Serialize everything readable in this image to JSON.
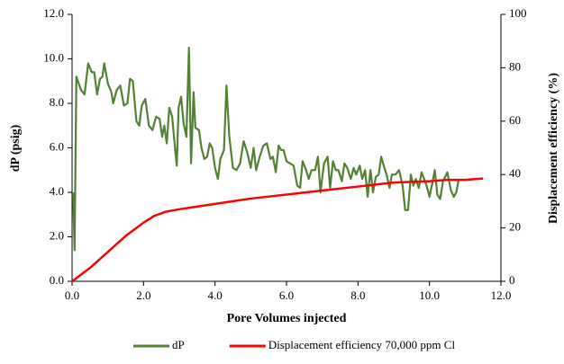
{
  "chart_data": {
    "type": "line",
    "x_label": "Pore Volumes injected",
    "y_label": "dP (psig)",
    "y2_label": "Displacement efficiency (%)",
    "xlim": [
      0,
      12
    ],
    "ylim": [
      0,
      12
    ],
    "y2lim": [
      0,
      100
    ],
    "xticks": [
      {
        "value": 0,
        "label": "0.0"
      },
      {
        "value": 2,
        "label": "2.0"
      },
      {
        "value": 4,
        "label": "4.0"
      },
      {
        "value": 6,
        "label": "6.0"
      },
      {
        "value": 8,
        "label": "8.0"
      },
      {
        "value": 10,
        "label": "10.0"
      },
      {
        "value": 12,
        "label": "12.0"
      }
    ],
    "yticks": [
      {
        "value": 0,
        "label": "0.0"
      },
      {
        "value": 2,
        "label": "2.0"
      },
      {
        "value": 4,
        "label": "4.0"
      },
      {
        "value": 6,
        "label": "6.0"
      },
      {
        "value": 8,
        "label": "8.0"
      },
      {
        "value": 10,
        "label": "10.0"
      },
      {
        "value": 12,
        "label": "12.0"
      }
    ],
    "y2ticks": [
      0,
      20,
      40,
      60,
      80,
      100
    ],
    "legend": "bottom",
    "series": [
      {
        "name": "dP",
        "color": "#538135",
        "x": [
          0.03,
          0.07,
          0.12,
          0.25,
          0.35,
          0.45,
          0.55,
          0.62,
          0.7,
          0.78,
          0.85,
          0.9,
          1.0,
          1.1,
          1.15,
          1.25,
          1.35,
          1.45,
          1.55,
          1.62,
          1.7,
          1.8,
          1.88,
          1.95,
          2.05,
          2.15,
          2.25,
          2.35,
          2.45,
          2.52,
          2.58,
          2.65,
          2.72,
          2.8,
          2.88,
          2.93,
          2.98,
          3.05,
          3.12,
          3.2,
          3.27,
          3.33,
          3.4,
          3.45,
          3.55,
          3.62,
          3.7,
          3.78,
          3.85,
          3.92,
          4.0,
          4.08,
          4.15,
          4.25,
          4.32,
          4.4,
          4.5,
          4.6,
          4.7,
          4.8,
          4.9,
          5.0,
          5.08,
          5.15,
          5.25,
          5.35,
          5.45,
          5.55,
          5.62,
          5.7,
          5.78,
          5.85,
          5.92,
          6.0,
          6.1,
          6.2,
          6.3,
          6.38,
          6.45,
          6.55,
          6.62,
          6.7,
          6.8,
          6.88,
          6.95,
          7.05,
          7.15,
          7.22,
          7.3,
          7.38,
          7.45,
          7.55,
          7.62,
          7.7,
          7.8,
          7.88,
          7.95,
          8.05,
          8.12,
          8.2,
          8.27,
          8.35,
          8.42,
          8.5,
          8.58,
          8.65,
          8.72,
          8.8,
          8.88,
          8.95,
          9.05,
          9.15,
          9.25,
          9.32,
          9.4,
          9.48,
          9.55,
          9.62,
          9.7,
          9.78,
          9.85,
          9.92,
          10.0,
          10.08,
          10.15,
          10.22,
          10.3,
          10.38,
          10.5,
          10.6,
          10.68,
          10.75,
          10.82
        ],
        "values": [
          4.0,
          1.4,
          9.2,
          8.6,
          8.4,
          9.8,
          9.4,
          9.4,
          8.4,
          9.1,
          9.2,
          9.8,
          8.9,
          8.5,
          8.0,
          8.6,
          8.8,
          7.9,
          8.0,
          9.1,
          9.0,
          7.2,
          7.0,
          7.9,
          8.2,
          7.0,
          6.8,
          7.4,
          7.3,
          6.5,
          7.0,
          6.2,
          7.8,
          7.4,
          6.0,
          5.2,
          7.8,
          8.3,
          7.1,
          6.5,
          10.5,
          5.3,
          8.5,
          6.9,
          6.8,
          6.0,
          5.5,
          5.6,
          6.2,
          6.0,
          5.1,
          4.6,
          5.5,
          5.9,
          8.8,
          6.5,
          5.1,
          5.0,
          5.3,
          6.3,
          5.8,
          5.1,
          6.0,
          5.0,
          5.6,
          6.1,
          6.2,
          5.5,
          5.6,
          4.9,
          6.1,
          5.9,
          5.9,
          5.4,
          5.3,
          5.2,
          4.3,
          4.2,
          5.4,
          5.0,
          4.6,
          5.0,
          5.0,
          5.6,
          4.0,
          5.3,
          5.6,
          4.2,
          5.4,
          5.0,
          5.0,
          4.5,
          5.3,
          5.1,
          4.6,
          5.1,
          4.8,
          5.2,
          4.6,
          5.0,
          3.8,
          5.0,
          4.0,
          4.7,
          4.8,
          5.6,
          5.2,
          4.8,
          4.2,
          4.8,
          4.8,
          5.0,
          4.3,
          3.2,
          3.2,
          4.8,
          4.3,
          4.6,
          4.2,
          4.9,
          4.6,
          4.3,
          3.8,
          4.4,
          5.0,
          3.9,
          3.7,
          4.5,
          4.9,
          4.1,
          3.8,
          4.0,
          4.6
        ]
      },
      {
        "name": "Displacement efficiency 70,000 ppm Cl",
        "color": "#ff0000",
        "axis": "y2",
        "x": [
          0,
          0.5,
          1.0,
          1.5,
          1.8,
          2.0,
          2.3,
          2.6,
          3.0,
          3.5,
          4.0,
          4.5,
          5.0,
          6.0,
          7.0,
          8.0,
          9.0,
          10.0,
          10.5,
          11.0,
          11.5
        ],
        "values": [
          0,
          5,
          11,
          17,
          20,
          22,
          24.5,
          26,
          27,
          28,
          29,
          30,
          31,
          32.5,
          34,
          35.5,
          37,
          37.5,
          38,
          38,
          38.5
        ]
      }
    ]
  }
}
